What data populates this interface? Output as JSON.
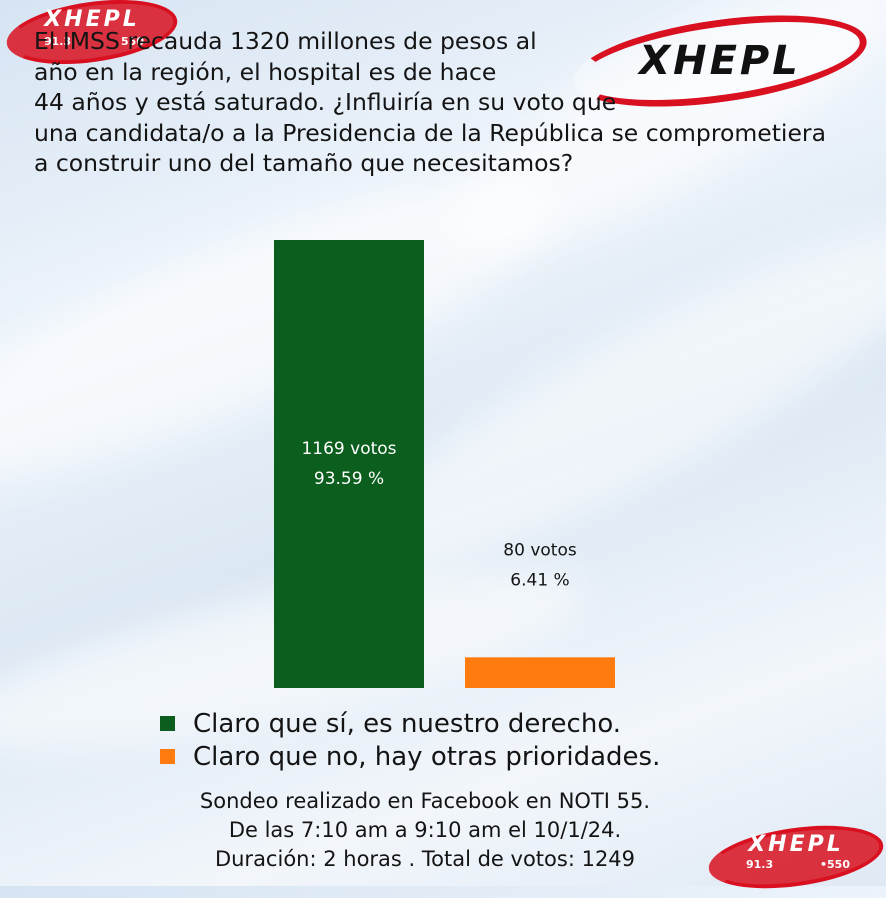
{
  "title": "El IMSS recauda 1320 millones de pesos al año en la región, el hospital es de hace 44 años y está saturado. ¿Influiría en su voto que una candidata/o a la Presidencia de la República se comprometiera a construir uno del tamaño que necesitamos?",
  "title_lines": [
    "El IMSS recauda 1320 millones de pesos al",
    "año en la región, el hospital es de hace",
    "44 años y está saturado. ¿Influiría en su voto que",
    "una candidata/o a la Presidencia de la República se comprometiera",
    "a construir uno del tamaño que necesitamos?"
  ],
  "logos": {
    "main": {
      "brand": "XHEPL",
      "icon": "xhepl-logo"
    },
    "top_left": {
      "brand": "XHEPL",
      "freq_fm": "91.3",
      "freq_am": "550",
      "icon": "xhepl-logo"
    },
    "bottom_right": {
      "brand": "XHEPL",
      "freq_fm": "91.3",
      "freq_am": "•550",
      "icon": "xhepl-logo"
    }
  },
  "chart_data": {
    "type": "bar",
    "categories": [
      "Claro que sí, es nuestro derecho.",
      "Claro que no, hay otras prioridades."
    ],
    "values": [
      93.59,
      6.41
    ],
    "votes": [
      1169,
      80
    ],
    "value_labels": [
      {
        "votes": "1169 votos",
        "percent": "93.59 %"
      },
      {
        "votes": "80 votos",
        "percent": "6.41 %"
      }
    ],
    "colors": [
      "#0b5e1d",
      "#ff7b0f"
    ],
    "ylim": [
      0,
      100
    ],
    "grid": false,
    "legend_position": "bottom"
  },
  "legend": [
    {
      "label": "Claro que sí, es nuestro derecho.",
      "color": "#0b5e1d"
    },
    {
      "label": "Claro que no, hay otras prioridades.",
      "color": "#ff7b0f"
    }
  ],
  "footer": {
    "line1": "Sondeo realizado en Facebook en NOTI 55.",
    "line2": "De las 7:10 am a 9:10 am el 10/1/24.",
    "line3": "Duración: 2 horas . Total de votos: 1249"
  }
}
